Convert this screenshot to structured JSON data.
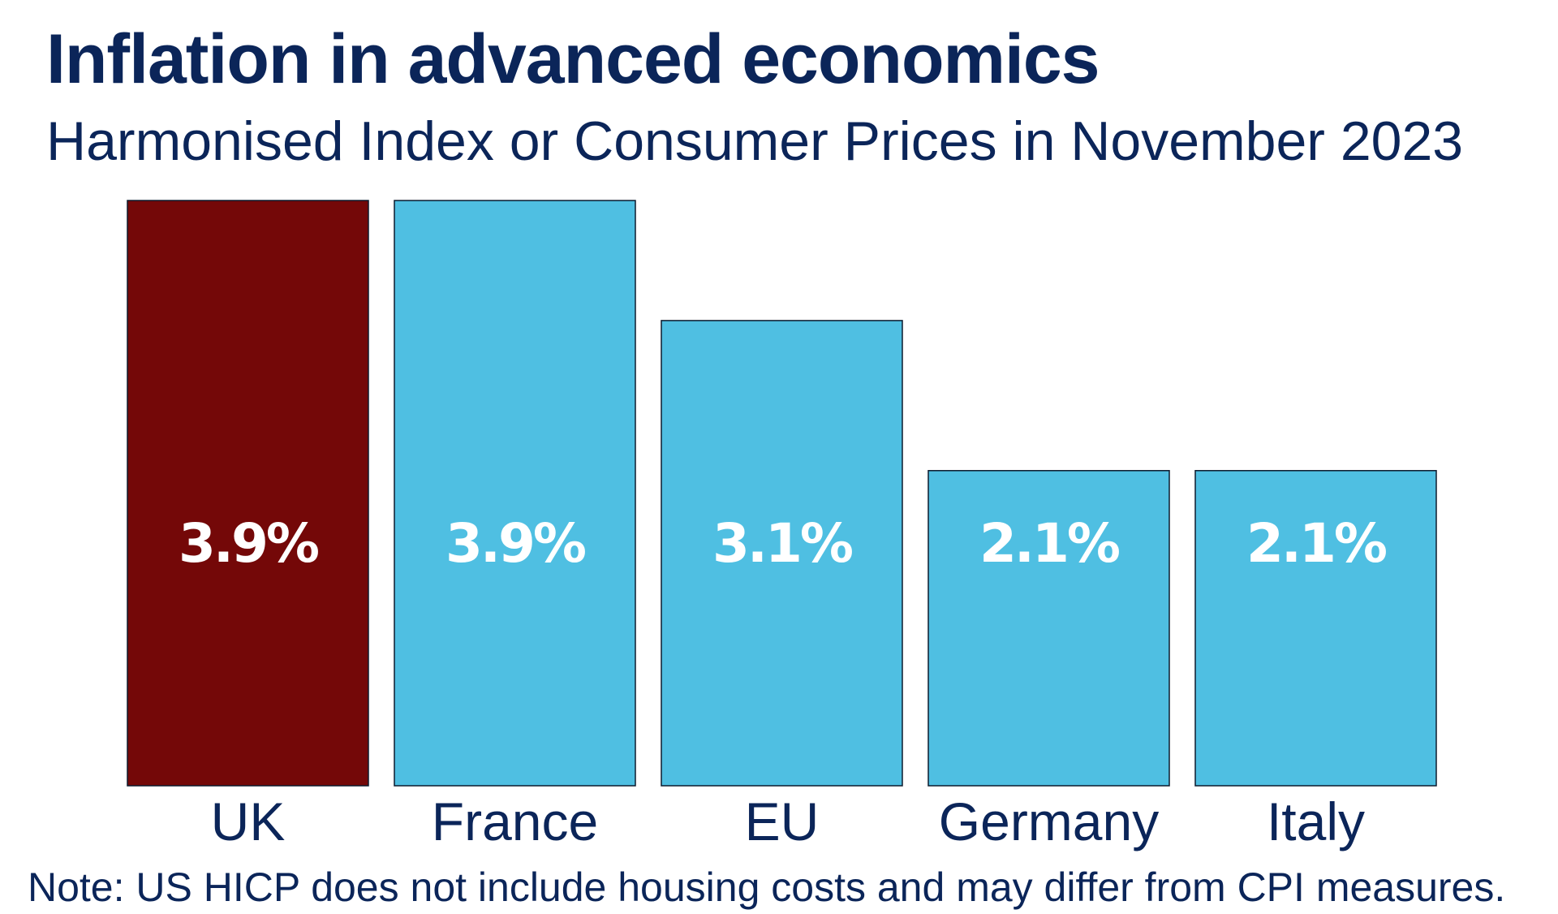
{
  "title": "Inflation in advanced economics",
  "subtitle": "Harmonised Index or Consumer Prices in November 2023",
  "note": "Note: US HICP does not include housing costs and may differ from CPI measures.",
  "colors": {
    "highlight": "#740808",
    "default": "#4fbfe2",
    "text": "#0b2559",
    "label": "#ffffff"
  },
  "chart_data": {
    "type": "bar",
    "title": "Inflation in advanced economics",
    "subtitle": "Harmonised Index or Consumer Prices in November 2023",
    "xlabel": "",
    "ylabel": "",
    "ylim": [
      0,
      3.9
    ],
    "grid": false,
    "legend": "none",
    "categories": [
      "UK",
      "France",
      "EU",
      "Germany",
      "Italy"
    ],
    "values": [
      3.9,
      3.9,
      3.1,
      2.1,
      2.1
    ],
    "data_labels": [
      "3.9%",
      "3.9%",
      "3.1%",
      "2.1%",
      "2.1%"
    ],
    "highlight": "UK"
  }
}
